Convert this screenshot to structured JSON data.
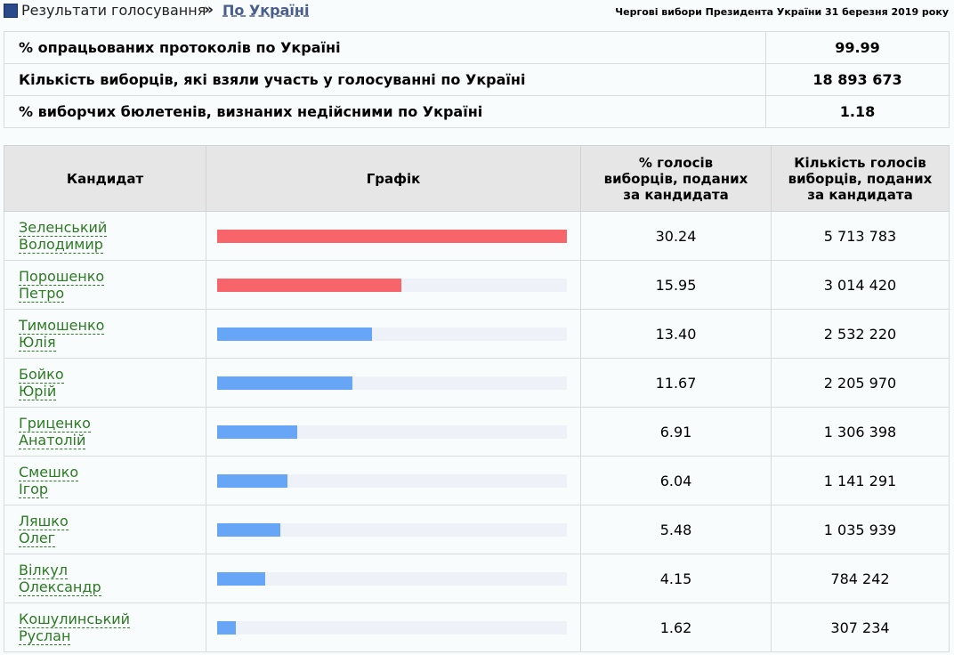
{
  "breadcrumb": {
    "section": "Результати голосування",
    "separator": "»",
    "current": "По Україні"
  },
  "election_title": "Чергові вибори Президента України 31 березня 2019 року",
  "summary": [
    {
      "label": "% опрацьованих протоколів по Україні",
      "value": "99.99"
    },
    {
      "label": "Кількість виборців, які взяли участь у голосуванні по Україні",
      "value": "18 893 673"
    },
    {
      "label": "% виборчих бюлетенів, визнаних недійсними по Україні",
      "value": "1.18"
    }
  ],
  "results_table": {
    "headers": {
      "candidate": "Кандидат",
      "chart": "Графік",
      "percent_l1": "% голосів",
      "percent_l2": "виборців, поданих",
      "percent_l3": "за кандидата",
      "votes_l1": "Кількість голосів",
      "votes_l2": "виборців, поданих",
      "votes_l3": "за кандидата"
    },
    "colors": {
      "leader": "#f7656a",
      "other": "#67a6f7",
      "track": "#eef1f8"
    },
    "rows": [
      {
        "surname": "Зеленський",
        "given": "Володимир",
        "percent": "30.24",
        "votes": "5 713 783",
        "bar_fraction": 1.0,
        "highlight": true
      },
      {
        "surname": "Порошенко",
        "given": "Петро",
        "percent": "15.95",
        "votes": "3 014 420",
        "bar_fraction": 0.527,
        "highlight": true
      },
      {
        "surname": "Тимошенко",
        "given": "Юлія",
        "percent": "13.40",
        "votes": "2 532 220",
        "bar_fraction": 0.443,
        "highlight": false
      },
      {
        "surname": "Бойко",
        "given": "Юрій",
        "percent": "11.67",
        "votes": "2 205 970",
        "bar_fraction": 0.386,
        "highlight": false
      },
      {
        "surname": "Гриценко",
        "given": "Анатолій",
        "percent": "6.91",
        "votes": "1 306 398",
        "bar_fraction": 0.229,
        "highlight": false
      },
      {
        "surname": "Смешко",
        "given": "Ігор",
        "percent": "6.04",
        "votes": "1 141 291",
        "bar_fraction": 0.2,
        "highlight": false
      },
      {
        "surname": "Ляшко",
        "given": "Олег",
        "percent": "5.48",
        "votes": "1 035 939",
        "bar_fraction": 0.181,
        "highlight": false
      },
      {
        "surname": "Вілкул",
        "given": "Олександр",
        "percent": "4.15",
        "votes": "784 242",
        "bar_fraction": 0.137,
        "highlight": false
      },
      {
        "surname": "Кошулинський",
        "given": "Руслан",
        "percent": "1.62",
        "votes": "307 234",
        "bar_fraction": 0.054,
        "highlight": false
      }
    ]
  }
}
